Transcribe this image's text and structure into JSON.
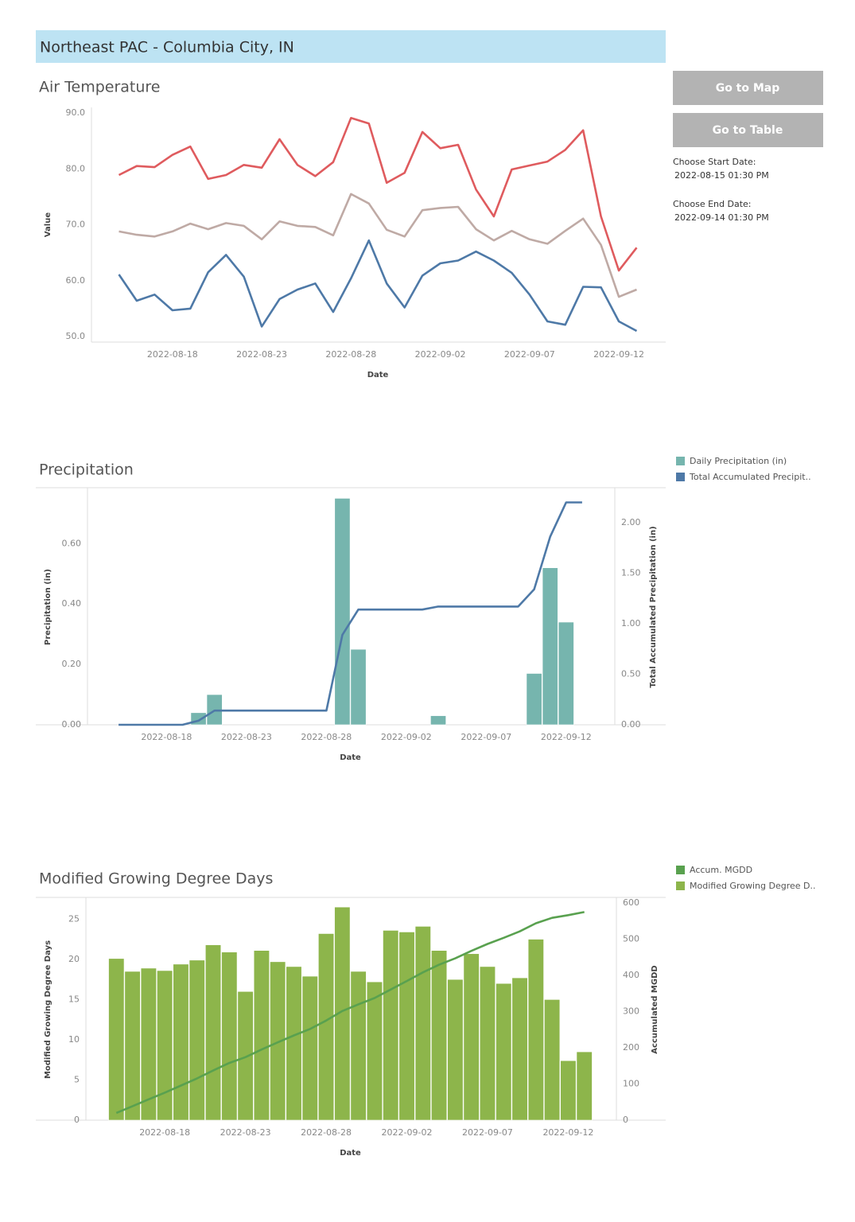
{
  "header": {
    "title": "Northeast PAC - Columbia City, IN"
  },
  "controls": {
    "buttons": [
      "Go to Map",
      "Go to Table"
    ],
    "start_label": "Choose Start Date:",
    "start_value": "2022-08-15 01:30 PM",
    "end_label": "Choose End Date:",
    "end_value": "2022-09-14 01:30 PM"
  },
  "chart_data": [
    {
      "type": "line",
      "title": "Air Temperature",
      "x_label": "Date",
      "y_label": "Value",
      "x": [
        "2022-08-15",
        "2022-08-16",
        "2022-08-17",
        "2022-08-18",
        "2022-08-19",
        "2022-08-20",
        "2022-08-21",
        "2022-08-22",
        "2022-08-23",
        "2022-08-24",
        "2022-08-25",
        "2022-08-26",
        "2022-08-27",
        "2022-08-28",
        "2022-08-29",
        "2022-08-30",
        "2022-08-31",
        "2022-09-01",
        "2022-09-02",
        "2022-09-03",
        "2022-09-04",
        "2022-09-05",
        "2022-09-06",
        "2022-09-07",
        "2022-09-08",
        "2022-09-09",
        "2022-09-10",
        "2022-09-11",
        "2022-09-12",
        "2022-09-13"
      ],
      "series": [
        {
          "color": "#df5b5e",
          "values": [
            78.9,
            80.5,
            80.3,
            82.5,
            84.0,
            78.2,
            78.9,
            80.7,
            80.2,
            85.3,
            80.7,
            78.7,
            81.2,
            89.1,
            88.1,
            77.5,
            79.3,
            86.6,
            83.7,
            84.3,
            76.3,
            71.5,
            79.9,
            80.6,
            81.3,
            83.4,
            86.9,
            71.5,
            61.8,
            65.9
          ]
        },
        {
          "color": "#bfaaa5",
          "values": [
            68.8,
            68.2,
            67.9,
            68.8,
            70.2,
            69.2,
            70.3,
            69.8,
            67.4,
            70.6,
            69.8,
            69.6,
            68.1,
            75.5,
            73.8,
            69.1,
            67.9,
            72.6,
            73.0,
            73.2,
            69.2,
            67.2,
            68.9,
            67.4,
            66.6,
            68.9,
            71.1,
            66.4,
            57.1,
            58.4
          ]
        },
        {
          "color": "#4e79a7",
          "values": [
            61.1,
            56.4,
            57.5,
            54.7,
            55.0,
            61.5,
            64.6,
            60.7,
            51.8,
            56.7,
            58.4,
            59.5,
            54.4,
            60.4,
            67.2,
            59.5,
            55.2,
            60.9,
            63.1,
            63.6,
            65.2,
            63.6,
            61.4,
            57.5,
            52.7,
            52.1,
            58.9,
            58.8,
            52.7,
            51.0
          ]
        }
      ],
      "xlim": [
        "2022-08-14",
        "2022-09-14"
      ],
      "xticks": [
        "2022-08-18",
        "2022-08-23",
        "2022-08-28",
        "2022-09-02",
        "2022-09-07",
        "2022-09-12"
      ],
      "ylim": [
        50,
        90
      ],
      "yticks": [
        {
          "value": 50,
          "label": "50.0"
        },
        {
          "value": 60,
          "label": "60.0"
        },
        {
          "value": 70,
          "label": "70.0"
        },
        {
          "value": 80,
          "label": "80.0"
        },
        {
          "value": 90,
          "label": "90.0"
        }
      ],
      "grid": false
    },
    {
      "type": "combo",
      "title": "Precipitation",
      "x_label": "Date",
      "y_label": "Precipitation (in)",
      "y2_label": "Total Accumulated Precipitation (in)",
      "x": [
        "2022-08-15",
        "2022-08-16",
        "2022-08-17",
        "2022-08-18",
        "2022-08-19",
        "2022-08-20",
        "2022-08-21",
        "2022-08-22",
        "2022-08-23",
        "2022-08-24",
        "2022-08-25",
        "2022-08-26",
        "2022-08-27",
        "2022-08-28",
        "2022-08-29",
        "2022-08-30",
        "2022-08-31",
        "2022-09-01",
        "2022-09-02",
        "2022-09-03",
        "2022-09-04",
        "2022-09-05",
        "2022-09-06",
        "2022-09-07",
        "2022-09-08",
        "2022-09-09",
        "2022-09-10",
        "2022-09-11",
        "2022-09-12",
        "2022-09-13"
      ],
      "series": [
        {
          "name": "Daily Precipitation (in)",
          "type": "bar",
          "color": "#76b5ae",
          "values": [
            0,
            0,
            0,
            0,
            0,
            0.04,
            0.1,
            0,
            0,
            0,
            0,
            0,
            0,
            0,
            0.75,
            0.25,
            0,
            0,
            0,
            0,
            0.03,
            0,
            0,
            0,
            0,
            0,
            0.17,
            0.52,
            0.34,
            0
          ]
        },
        {
          "name": "Total Accumulated Precipit..",
          "type": "line",
          "axis": "y2",
          "color": "#4e79a7",
          "values": [
            0,
            0,
            0,
            0,
            0,
            0.04,
            0.14,
            0.14,
            0.14,
            0.14,
            0.14,
            0.14,
            0.14,
            0.14,
            0.89,
            1.14,
            1.14,
            1.14,
            1.14,
            1.14,
            1.17,
            1.17,
            1.17,
            1.17,
            1.17,
            1.17,
            1.34,
            1.86,
            2.2,
            2.2
          ]
        }
      ],
      "xlim": [
        "2022-08-14",
        "2022-09-14"
      ],
      "xticks": [
        "2022-08-18",
        "2022-08-23",
        "2022-08-28",
        "2022-09-02",
        "2022-09-07",
        "2022-09-12"
      ],
      "ylim": [
        0,
        0.78
      ],
      "yticks": [
        {
          "value": 0,
          "label": "0.00"
        },
        {
          "value": 0.2,
          "label": "0.20"
        },
        {
          "value": 0.4,
          "label": "0.40"
        },
        {
          "value": 0.6,
          "label": "0.60"
        }
      ],
      "y2lim": [
        0,
        2.33
      ],
      "y2ticks": [
        {
          "value": 0,
          "label": "0.00"
        },
        {
          "value": 0.5,
          "label": "0.50"
        },
        {
          "value": 1,
          "label": "1.00"
        },
        {
          "value": 1.5,
          "label": "1.50"
        },
        {
          "value": 2,
          "label": "2.00"
        }
      ],
      "grid": false,
      "legend": "right"
    },
    {
      "type": "combo",
      "title": "Modified Growing Degree Days",
      "x_label": "Date",
      "y_label": "Modified Growing Degree Days",
      "y2_label": "Accumulated MGDD",
      "x": [
        "2022-08-15",
        "2022-08-16",
        "2022-08-17",
        "2022-08-18",
        "2022-08-19",
        "2022-08-20",
        "2022-08-21",
        "2022-08-22",
        "2022-08-23",
        "2022-08-24",
        "2022-08-25",
        "2022-08-26",
        "2022-08-27",
        "2022-08-28",
        "2022-08-29",
        "2022-08-30",
        "2022-08-31",
        "2022-09-01",
        "2022-09-02",
        "2022-09-03",
        "2022-09-04",
        "2022-09-05",
        "2022-09-06",
        "2022-09-07",
        "2022-09-08",
        "2022-09-09",
        "2022-09-10",
        "2022-09-11",
        "2022-09-12",
        "2022-09-13"
      ],
      "series": [
        {
          "name": "Accum. MGDD",
          "type": "line",
          "axis": "y2",
          "color": "#59a14f",
          "values": [
            20.1,
            38.6,
            57.5,
            76.1,
            95.5,
            115.4,
            137.2,
            158.1,
            174.1,
            195.2,
            214.9,
            234,
            251.9,
            275.1,
            301.6,
            320.1,
            337.3,
            360.9,
            384.3,
            408.4,
            429.5,
            447,
            467.7,
            486.8,
            503.8,
            521.5,
            544,
            559,
            566.4,
            574.9
          ]
        },
        {
          "name": "Modified Growing Degree D..",
          "type": "bar",
          "color": "#8db54b",
          "values": [
            20.1,
            18.5,
            18.9,
            18.6,
            19.4,
            19.9,
            21.8,
            20.9,
            16.0,
            21.1,
            19.7,
            19.1,
            17.9,
            23.2,
            26.5,
            18.5,
            17.2,
            23.6,
            23.4,
            24.1,
            21.1,
            17.5,
            20.7,
            19.1,
            17.0,
            17.7,
            22.5,
            15.0,
            7.4,
            8.5
          ]
        }
      ],
      "xlim": [
        "2022-08-14",
        "2022-09-14"
      ],
      "xticks": [
        "2022-08-18",
        "2022-08-23",
        "2022-08-28",
        "2022-09-02",
        "2022-09-07",
        "2022-09-12"
      ],
      "ylim": [
        0,
        27.5
      ],
      "yticks": [
        0,
        5,
        10,
        15,
        20,
        25
      ],
      "y2lim": [
        0,
        611
      ],
      "y2ticks": [
        0,
        100,
        200,
        300,
        400,
        500,
        600
      ],
      "grid": false,
      "legend": "right"
    }
  ]
}
